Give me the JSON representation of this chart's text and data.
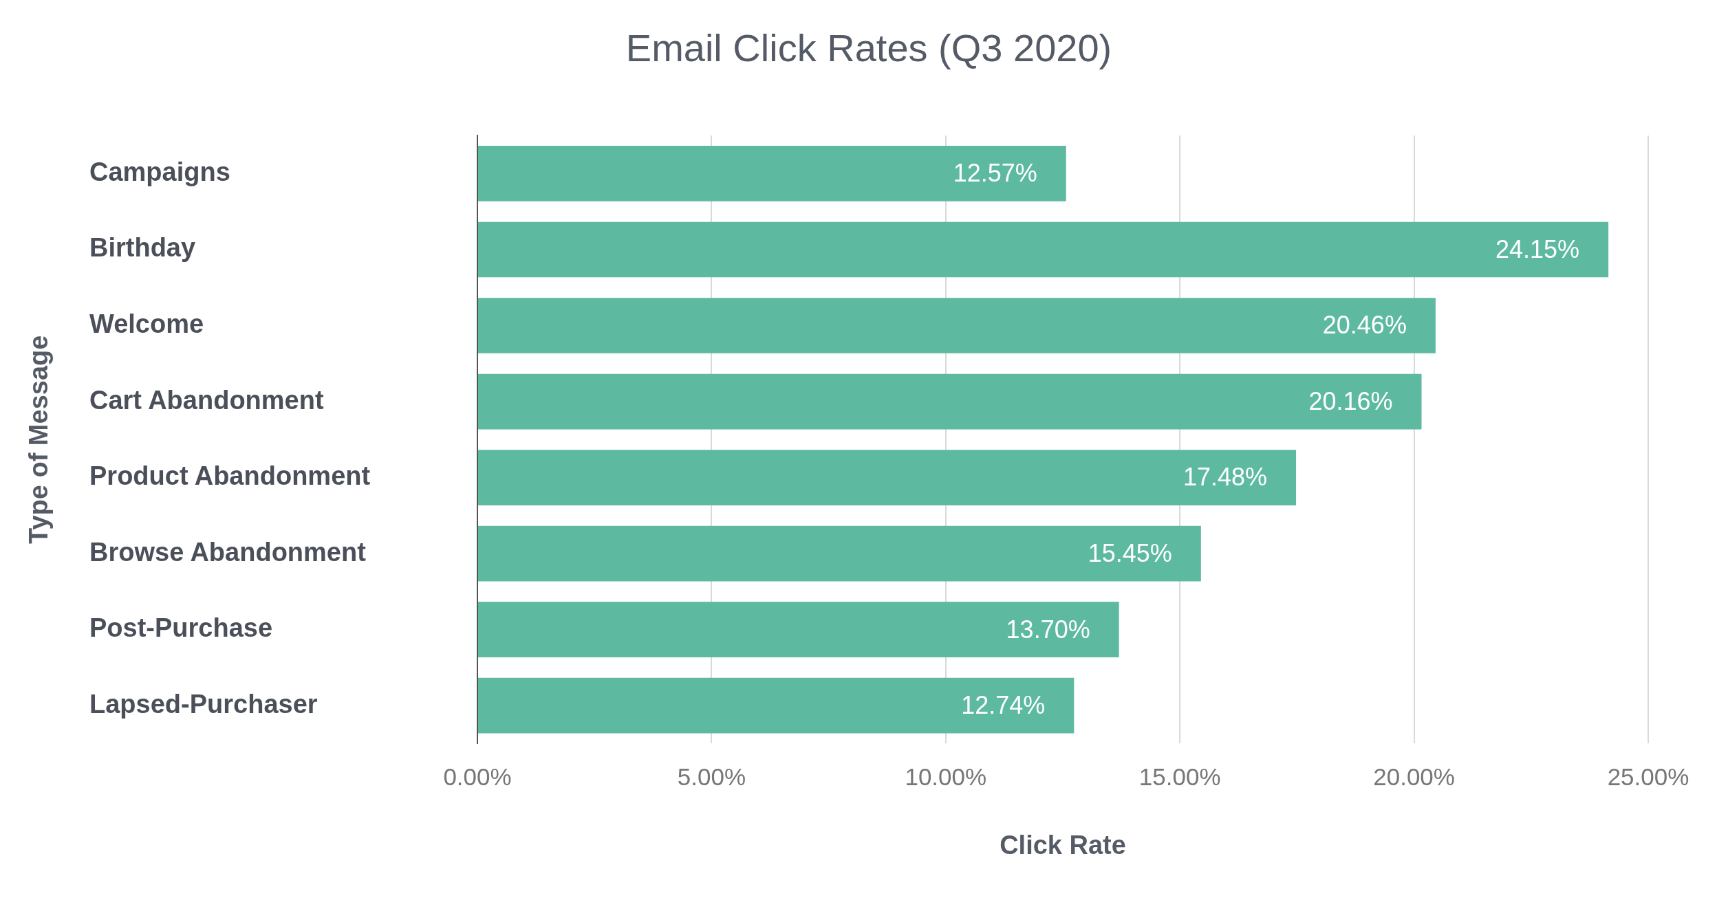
{
  "chart_data": {
    "type": "bar",
    "orientation": "horizontal",
    "title": "Email Click Rates (Q3 2020)",
    "xlabel": "Click Rate",
    "ylabel": "Type of Message",
    "categories": [
      "Campaigns",
      "Birthday",
      "Welcome",
      "Cart Abandonment",
      "Product Abandonment",
      "Browse Abandonment",
      "Post-Purchase",
      "Lapsed-Purchaser"
    ],
    "values": [
      12.57,
      24.15,
      20.46,
      20.16,
      17.48,
      15.45,
      13.7,
      12.74
    ],
    "value_labels": [
      "12.57%",
      "24.15%",
      "20.46%",
      "20.16%",
      "17.48%",
      "15.45%",
      "13.70%",
      "12.74%"
    ],
    "color": "#5dbaa1",
    "xlim": [
      0,
      25
    ],
    "xticks": [
      {
        "value": 0,
        "label": "0.00%"
      },
      {
        "value": 5,
        "label": "5.00%"
      },
      {
        "value": 10,
        "label": "10.00%"
      },
      {
        "value": 15,
        "label": "15.00%"
      },
      {
        "value": 20,
        "label": "20.00%"
      },
      {
        "value": 25,
        "label": "25.00%"
      }
    ],
    "grid": "x",
    "legend": false
  }
}
